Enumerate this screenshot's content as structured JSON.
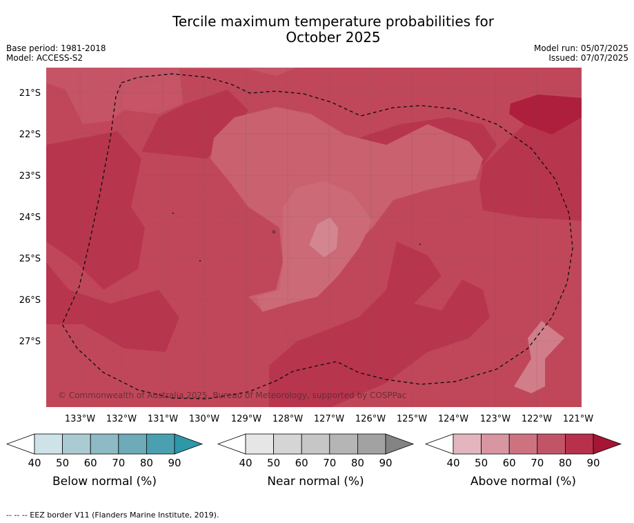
{
  "title": {
    "line1": "Tercile maximum temperature probabilities for",
    "line2": "October 2025"
  },
  "meta": {
    "base_period": "Base period: 1981-2018",
    "model": "Model: ACCESS-S2",
    "model_run": "Model run: 05/07/2025",
    "issued": "Issued: 07/07/2025"
  },
  "map": {
    "lat_labels": [
      "21°S",
      "22°S",
      "23°S",
      "24°S",
      "25°S",
      "26°S",
      "27°S"
    ],
    "lon_labels": [
      "133°W",
      "132°W",
      "131°W",
      "130°W",
      "129°W",
      "128°W",
      "127°W",
      "126°W",
      "125°W",
      "124°W",
      "123°W",
      "122°W",
      "121°W"
    ],
    "copyright": "© Commonwealth of Australia 2025, Bureau of Meteorology, supported by COSPPac",
    "background_color": "#c0475a"
  },
  "legends": [
    {
      "label": "Below normal (%)",
      "ticks": [
        "40",
        "50",
        "60",
        "70",
        "80",
        "90"
      ],
      "colors": [
        "#ffffff",
        "#cde3e8",
        "#abcbd2",
        "#8dbac5",
        "#6eaab8",
        "#4aa0b0",
        "#2e97a8"
      ]
    },
    {
      "label": "Near normal (%)",
      "ticks": [
        "40",
        "50",
        "60",
        "70",
        "80",
        "90"
      ],
      "colors": [
        "#ffffff",
        "#e6e6e6",
        "#d5d5d5",
        "#c6c6c6",
        "#b5b5b5",
        "#a2a2a2",
        "#838383"
      ]
    },
    {
      "label": "Above normal (%)",
      "ticks": [
        "40",
        "50",
        "60",
        "70",
        "80",
        "90"
      ],
      "colors": [
        "#ffffff",
        "#e3b6bf",
        "#d896a2",
        "#cd7380",
        "#c25467",
        "#b8314b",
        "#a61534"
      ]
    }
  ],
  "footer": "--  --  -- EEZ border V11 (Flanders Marine Institute, 2019)."
}
